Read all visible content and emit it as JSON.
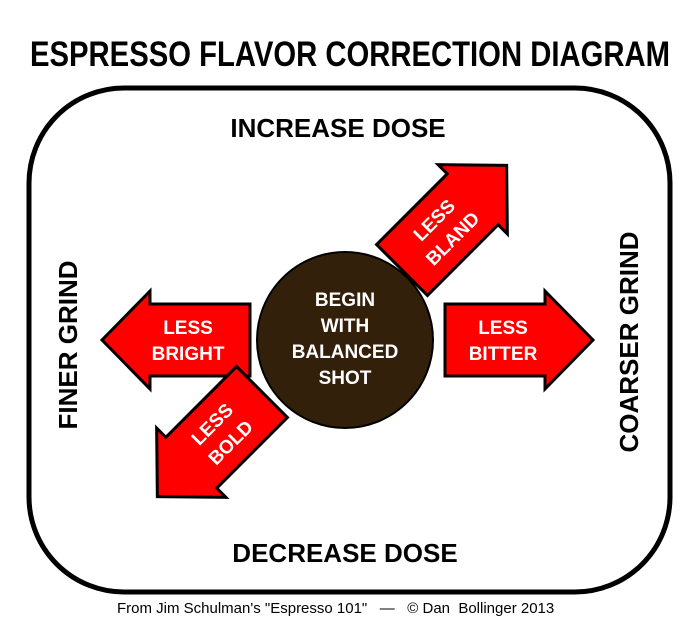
{
  "title": "ESPRESSO FLAVOR CORRECTION DIAGRAM",
  "labels": {
    "top": "INCREASE DOSE",
    "bottom": "DECREASE DOSE",
    "left": "FINER GRIND",
    "right": "COARSER GRIND"
  },
  "center": {
    "lines": [
      "BEGIN",
      "WITH",
      "BALANCED",
      "SHOT"
    ]
  },
  "arrows": {
    "up_right": {
      "line1": "LESS",
      "line2": "BLAND"
    },
    "right": {
      "line1": "LESS",
      "line2": "BITTER"
    },
    "left": {
      "line1": "LESS",
      "line2": "BRIGHT"
    },
    "down_left": {
      "line1": "LESS",
      "line2": "BOLD"
    }
  },
  "footer": "From Jim Schulman's \"Espresso 101\"   —   © Dan  Bollinger 2013",
  "colors": {
    "arrow": "#ff0000",
    "circle": "#33200a",
    "frame": "#000000"
  }
}
